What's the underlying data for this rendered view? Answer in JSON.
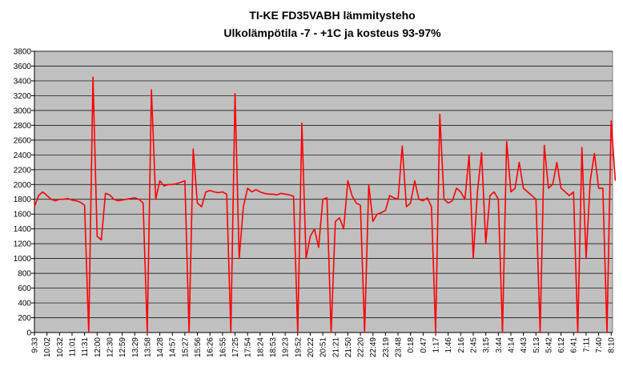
{
  "chart_data": {
    "type": "line",
    "title": "TI-KE FD35VABH lämmitysteho",
    "subtitle": "Ulkolämpötila  -7 - +1C ja kosteus 93-97%",
    "categories": [
      "9:33",
      null,
      null,
      "10:02",
      null,
      null,
      "10:32",
      null,
      null,
      "11:01",
      null,
      null,
      "11:31",
      null,
      null,
      "12:00",
      null,
      null,
      "12:30",
      null,
      null,
      "12:59",
      null,
      null,
      "13:29",
      null,
      null,
      "13:58",
      null,
      null,
      "14:28",
      null,
      null,
      "14:57",
      null,
      null,
      "15:27",
      null,
      null,
      "15:56",
      null,
      null,
      "16:26",
      null,
      null,
      "16:55",
      null,
      null,
      "17:25",
      null,
      null,
      "17:54",
      null,
      null,
      "18:24",
      null,
      null,
      "18:53",
      null,
      null,
      "19:23",
      null,
      null,
      "19:52",
      null,
      null,
      "20:22",
      null,
      null,
      "20:51",
      null,
      null,
      "21:21",
      null,
      null,
      "21:50",
      null,
      null,
      "22:20",
      null,
      null,
      "22:49",
      null,
      null,
      "23:19",
      null,
      null,
      "23:48",
      null,
      null,
      "0:18",
      null,
      null,
      "0:47",
      null,
      null,
      "1:17",
      null,
      null,
      "1:46",
      null,
      null,
      "2:16",
      null,
      null,
      "2:45",
      null,
      null,
      "3:15",
      null,
      null,
      "3:44",
      null,
      null,
      "4:14",
      null,
      null,
      "4:43",
      null,
      null,
      "5:13",
      null,
      null,
      "5:42",
      null,
      null,
      "6:12",
      null,
      null,
      "6:41",
      null,
      null,
      "7:11",
      null,
      null,
      "7:40",
      null,
      null,
      "8:10",
      null
    ],
    "series": [
      {
        "color": "#ff0000",
        "values": [
          1700,
          1850,
          1900,
          1850,
          1800,
          1780,
          1800,
          1800,
          1810,
          1790,
          1780,
          1760,
          1720,
          0,
          3450,
          1300,
          1250,
          1880,
          1860,
          1800,
          1780,
          1790,
          1800,
          1810,
          1820,
          1800,
          1750,
          0,
          3280,
          1800,
          2050,
          1980,
          2000,
          2000,
          2010,
          2030,
          2050,
          0,
          2480,
          1750,
          1700,
          1900,
          1920,
          1900,
          1890,
          1900,
          1870,
          0,
          3230,
          1000,
          1700,
          1950,
          1900,
          1930,
          1900,
          1880,
          1870,
          1870,
          1860,
          1880,
          1870,
          1860,
          1840,
          0,
          2830,
          1000,
          1300,
          1400,
          1150,
          1800,
          1820,
          0,
          1500,
          1550,
          1400,
          2050,
          1850,
          1750,
          1720,
          0,
          2000,
          1500,
          1600,
          1620,
          1650,
          1850,
          1820,
          1800,
          2520,
          1700,
          1750,
          2050,
          1800,
          1780,
          1820,
          1700,
          0,
          2950,
          1800,
          1750,
          1780,
          1950,
          1900,
          1800,
          2400,
          1000,
          1900,
          2430,
          1200,
          1850,
          1900,
          1800,
          0,
          2580,
          1900,
          1950,
          2300,
          1950,
          1900,
          1850,
          1800,
          0,
          2530,
          1950,
          2000,
          2300,
          1950,
          1900,
          1850,
          1900,
          0,
          2500,
          1000,
          2050,
          2420,
          1950,
          1950,
          0,
          2860,
          2050
        ]
      }
    ],
    "ylim": [
      0,
      3800
    ],
    "yticks": [
      0,
      200,
      400,
      600,
      800,
      1000,
      1200,
      1400,
      1600,
      1800,
      2000,
      2200,
      2400,
      2600,
      2800,
      3000,
      3200,
      3400,
      3600,
      3800
    ],
    "grid": true
  }
}
